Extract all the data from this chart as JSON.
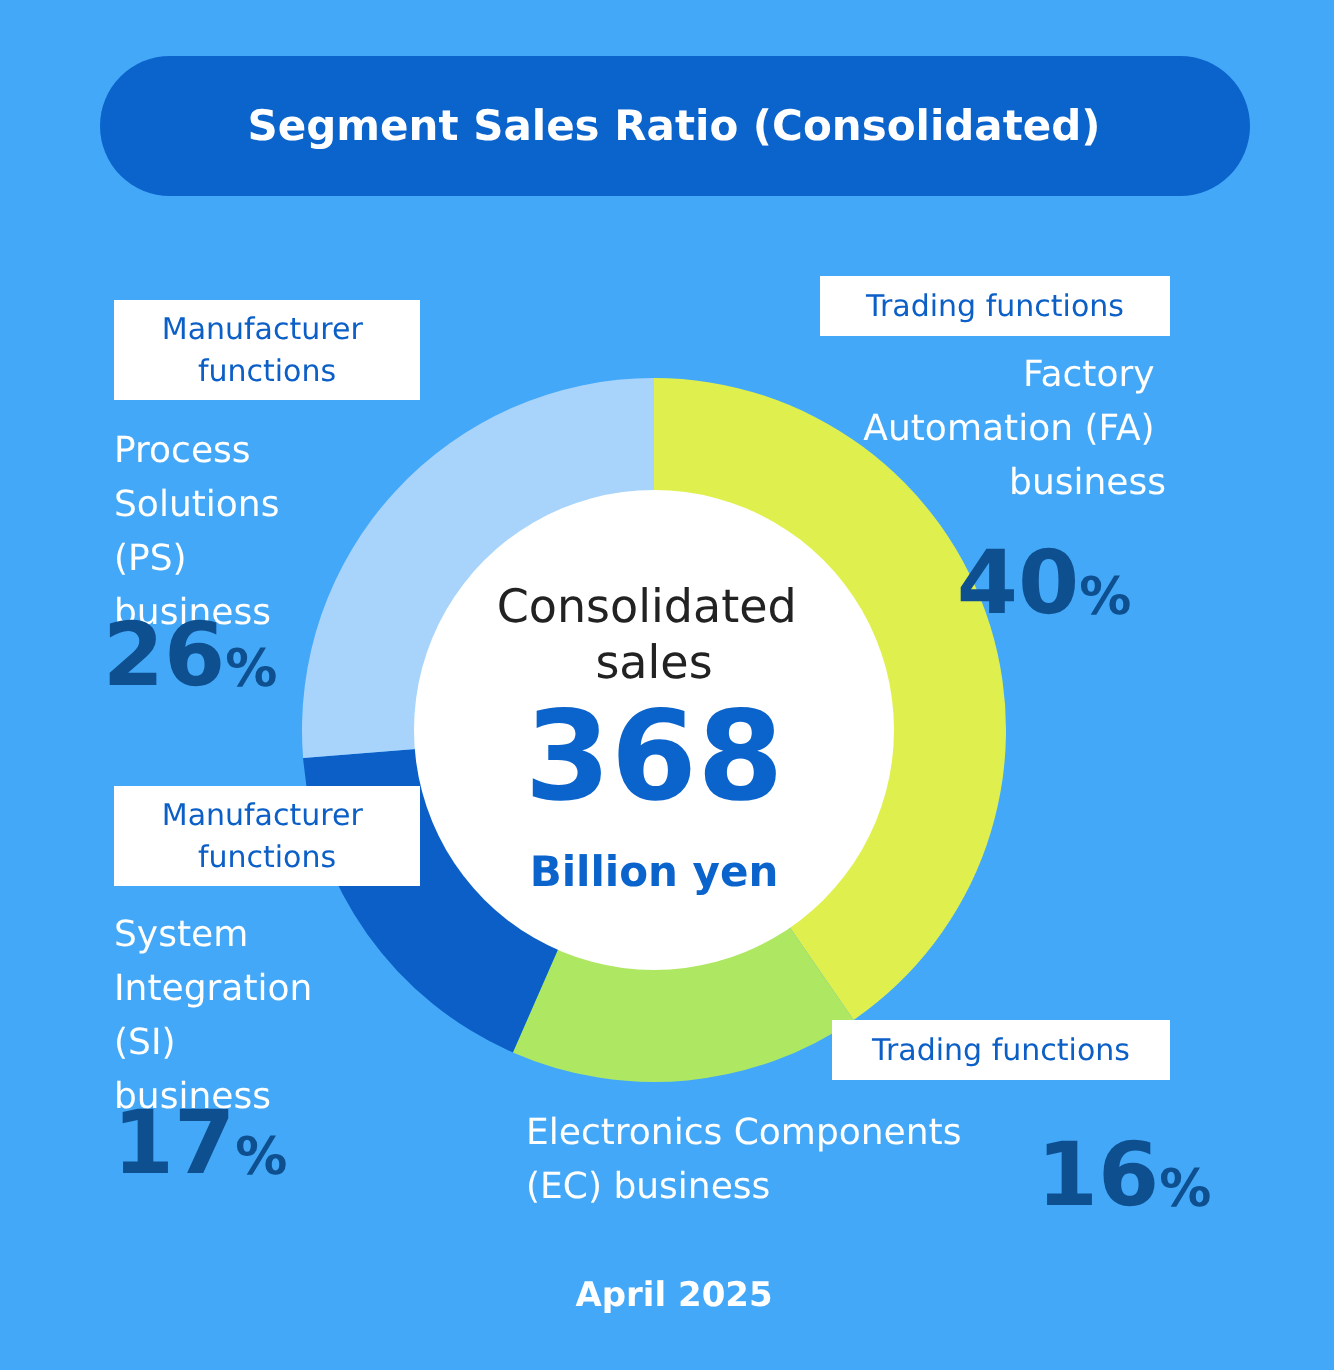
{
  "chart_data": {
    "type": "donut",
    "title": "Segment Sales Ratio (Consolidated)",
    "categories": [
      "Factory Automation (FA) business",
      "Electronics Components (EC) business",
      "System Integration (SI) business",
      "Process Solutions (PS) business"
    ],
    "values": [
      40,
      16,
      17,
      26
    ],
    "colors": [
      "#dff04e",
      "#aee862",
      "#0b5fc6",
      "#a8d4fc"
    ],
    "value_labels": [
      "40%",
      "16%",
      "17%",
      "26%"
    ],
    "annotations": [
      "Consolidated sales",
      "368",
      "Billion yen",
      "April 2025",
      {
        "text": "Trading functions",
        "x": "Factory Automation (FA) business"
      },
      {
        "text": "Trading functions",
        "x": "Electronics Components (EC) business"
      },
      {
        "text": "Manufacturer functions",
        "x": "System Integration (SI) business"
      },
      {
        "text": "Manufacturer functions",
        "x": "Process Solutions (PS) business"
      }
    ]
  }
}
